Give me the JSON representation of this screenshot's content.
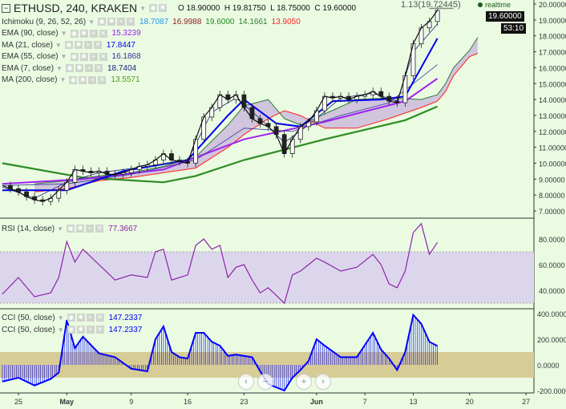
{
  "header": {
    "symbol": "ETHUSD, 240, KRAKEN",
    "ohlc": {
      "o_label": "O",
      "o": "18.90000",
      "h_label": "H",
      "h": "19.81750",
      "l_label": "L",
      "l": "18.75000",
      "c_label": "C",
      "c": "19.60000"
    },
    "fib_label": "1.13(19.72445)",
    "realtime_label": "realtime",
    "last_price": "19.60000",
    "countdown": "53:10"
  },
  "indicators": [
    {
      "label": "Ichimoku (9, 26, 52, 26)",
      "values": [
        {
          "v": "18.7087",
          "color": "#2196f3"
        },
        {
          "v": "16.9988",
          "color": "#8b1a1a"
        },
        {
          "v": "19.6000",
          "color": "#228b22"
        },
        {
          "v": "14.1661",
          "color": "#2e7d32"
        },
        {
          "v": "13.9050",
          "color": "#ff2020"
        }
      ]
    },
    {
      "label": "EMA (90, close)",
      "values": [
        {
          "v": "15.3239",
          "color": "#a020f0"
        }
      ]
    },
    {
      "label": "MA (21, close)",
      "values": [
        {
          "v": "17.8447",
          "color": "#0000ee"
        }
      ]
    },
    {
      "label": "EMA (55, close)",
      "values": [
        {
          "v": "16.1868",
          "color": "#333399"
        }
      ]
    },
    {
      "label": "EMA (7, close)",
      "values": [
        {
          "v": "18.7404",
          "color": "#1a237e"
        }
      ]
    },
    {
      "label": "MA (200, close)",
      "values": [
        {
          "v": "13.5571",
          "color": "#4f9a1f"
        }
      ]
    }
  ],
  "rsi_legend": {
    "label": "RSI (14, close)",
    "value": "77.3667"
  },
  "cci_legend": [
    {
      "label": "CCI (50, close)",
      "value": "147.2337"
    },
    {
      "label": "CCI (50, close)",
      "value": "147.2337"
    }
  ],
  "nav": {
    "prev": "‹",
    "zoom_out": "−",
    "zoom_in": "+",
    "next": "›"
  },
  "colors": {
    "background": "#eafbe2",
    "price": "#111111",
    "ma200": "#2e8b22",
    "ema90": "#a020f0",
    "ma21": "#0000ee",
    "ema55": "#3a3aa0",
    "ema7": "#1a237e",
    "rsi": "#8e24aa",
    "cci": "#0000ff",
    "cloud": "#c9b8dc",
    "band_rsi": "#dcd6ec",
    "band_cci": "#d8cc96"
  },
  "chart_data": [
    {
      "type": "line",
      "title": "ETHUSD, 240, KRAKEN",
      "x_unit": "day index (0 = Apr 25)",
      "x_ticks": [
        {
          "d": 0,
          "label": "25"
        },
        {
          "d": 6,
          "label": "May"
        },
        {
          "d": 14,
          "label": "9"
        },
        {
          "d": 21,
          "label": "16"
        },
        {
          "d": 28,
          "label": "23"
        },
        {
          "d": 37,
          "label": "Jun"
        },
        {
          "d": 43,
          "label": "7"
        },
        {
          "d": 49,
          "label": "13"
        },
        {
          "d": 56,
          "label": "20"
        },
        {
          "d": 63,
          "label": "27"
        }
      ],
      "ylim": [
        6.7,
        20.2
      ],
      "y_ticks": [
        "7.00000",
        "8.00000",
        "9.00000",
        "10.00000",
        "11.00000",
        "12.00000",
        "13.00000",
        "14.00000",
        "15.00000",
        "16.00000",
        "17.00000",
        "18.00000",
        "19.00000",
        "20.00000"
      ],
      "series": [
        {
          "name": "Price",
          "x": [
            -2,
            -1,
            0,
            1,
            2,
            3,
            4,
            5,
            6,
            7,
            8,
            9,
            10,
            11,
            12,
            13,
            14,
            15,
            16,
            17,
            18,
            19,
            20,
            21,
            22,
            23,
            24,
            25,
            26,
            27,
            28,
            29,
            30,
            31,
            32,
            33,
            34,
            35,
            36,
            37,
            38,
            39,
            40,
            41,
            42,
            43,
            44,
            45,
            46,
            47,
            48,
            49,
            50,
            51,
            52
          ],
          "y": [
            8.6,
            8.4,
            8.2,
            7.9,
            7.7,
            7.6,
            7.8,
            8.3,
            8.8,
            9.6,
            9.5,
            9.4,
            9.5,
            9.3,
            9.3,
            9.4,
            9.6,
            9.8,
            9.9,
            10.2,
            10.6,
            10.2,
            10.1,
            10.0,
            11.5,
            12.9,
            13.5,
            14.3,
            14.0,
            14.3,
            13.5,
            12.8,
            12.5,
            12.3,
            11.8,
            10.6,
            11.5,
            12.3,
            12.6,
            13.3,
            14.2,
            14.1,
            14.2,
            14.0,
            14.2,
            14.3,
            14.5,
            14.2,
            13.9,
            13.8,
            15.5,
            17.5,
            18.5,
            18.9,
            19.6
          ]
        },
        {
          "name": "MA (200, close)",
          "x": [
            -2,
            8,
            18,
            22,
            28,
            38,
            48,
            52
          ],
          "y": [
            10.0,
            9.1,
            8.8,
            9.2,
            10.2,
            11.5,
            12.7,
            13.56
          ]
        },
        {
          "name": "EMA (90, close)",
          "x": [
            -2,
            8,
            18,
            28,
            38,
            48,
            52
          ],
          "y": [
            8.7,
            9.0,
            9.6,
            11.5,
            12.6,
            13.9,
            15.32
          ]
        },
        {
          "name": "EMA (55, close)",
          "x": [
            -2,
            6,
            14,
            22,
            28,
            34,
            40,
            46,
            52
          ],
          "y": [
            8.6,
            8.7,
            9.3,
            10.2,
            12.2,
            12.0,
            13.0,
            13.8,
            16.19
          ]
        },
        {
          "name": "MA (21, close)",
          "x": [
            -2,
            6,
            13,
            21,
            26,
            28,
            32,
            35,
            39,
            45,
            48,
            52
          ],
          "y": [
            8.3,
            8.3,
            9.5,
            10.2,
            13.0,
            14.0,
            12.5,
            12.3,
            13.9,
            14.0,
            14.2,
            17.84
          ]
        },
        {
          "name": "EMA (7, close)",
          "x": [
            -2,
            2,
            6,
            10,
            16,
            21,
            24,
            27,
            30,
            33,
            36,
            40,
            44,
            47,
            49,
            52
          ],
          "y": [
            8.5,
            7.8,
            8.8,
            9.4,
            9.8,
            10.2,
            13.2,
            14.1,
            12.8,
            11.3,
            12.4,
            14.1,
            14.4,
            13.9,
            17.0,
            18.74
          ]
        },
        {
          "name": "Ichimoku Span A",
          "x": [
            2,
            6,
            10,
            14,
            18,
            22,
            26,
            28,
            31,
            33,
            35,
            38,
            42,
            46,
            50,
            52,
            53,
            54,
            56,
            57
          ],
          "y": [
            8.7,
            8.9,
            9.2,
            9.4,
            9.8,
            10.4,
            12.4,
            13.6,
            14.0,
            12.8,
            12.4,
            13.1,
            14.0,
            14.1,
            14.0,
            14.3,
            15.0,
            16.0,
            17.1,
            17.9
          ]
        },
        {
          "name": "Ichimoku Span B",
          "x": [
            2,
            6,
            10,
            14,
            18,
            22,
            26,
            28,
            31,
            33,
            35,
            38,
            42,
            46,
            50,
            52,
            53,
            54,
            56,
            57
          ],
          "y": [
            8.2,
            8.4,
            8.9,
            9.1,
            9.4,
            9.7,
            11.0,
            11.8,
            12.8,
            13.3,
            13.0,
            12.2,
            12.2,
            12.8,
            13.5,
            13.9,
            14.5,
            15.5,
            16.7,
            16.9
          ]
        }
      ]
    },
    {
      "type": "line",
      "title": "RSI (14, close)",
      "ylim": [
        27,
        96
      ],
      "bands": [
        30,
        70
      ],
      "y_ticks": [
        "40.0000",
        "60.0000",
        "80.0000"
      ],
      "x": [
        -2,
        0,
        2,
        4,
        5,
        6,
        7,
        8,
        10,
        12,
        14,
        16,
        17,
        18,
        19,
        21,
        22,
        23,
        24,
        25,
        26,
        27,
        28,
        29,
        30,
        31,
        33,
        34,
        35,
        37,
        38,
        40,
        42,
        44,
        45,
        46,
        47,
        48,
        49,
        50,
        51,
        52
      ],
      "y": [
        37,
        50,
        35,
        38,
        50,
        78,
        62,
        72,
        60,
        48,
        52,
        50,
        70,
        72,
        48,
        52,
        75,
        80,
        72,
        75,
        50,
        58,
        60,
        48,
        38,
        42,
        30,
        52,
        55,
        65,
        62,
        55,
        58,
        68,
        60,
        45,
        42,
        55,
        85,
        92,
        68,
        77.37
      ]
    },
    {
      "type": "bar",
      "title": "CCI (50, close)",
      "ylim": [
        -230,
        420
      ],
      "bands": [
        -100,
        100
      ],
      "y_ticks": [
        "-200.0000",
        "0.0000",
        "200.0000",
        "400.0000"
      ],
      "x": [
        -2,
        0,
        2,
        4,
        5,
        6,
        7,
        8,
        10,
        12,
        14,
        16,
        17,
        18,
        19,
        20,
        21,
        22,
        23,
        24,
        25,
        26,
        27,
        29,
        30,
        31,
        33,
        34,
        35,
        36,
        37,
        38,
        40,
        42,
        44,
        45,
        46,
        47,
        48,
        49,
        50,
        51,
        52
      ],
      "y": [
        -130,
        -100,
        -160,
        -110,
        -60,
        350,
        130,
        220,
        90,
        60,
        -30,
        -50,
        200,
        300,
        100,
        60,
        50,
        250,
        250,
        180,
        150,
        70,
        80,
        60,
        -50,
        -150,
        -200,
        -100,
        -40,
        30,
        200,
        150,
        60,
        60,
        250,
        120,
        50,
        -40,
        100,
        390,
        320,
        180,
        147.23
      ]
    }
  ]
}
